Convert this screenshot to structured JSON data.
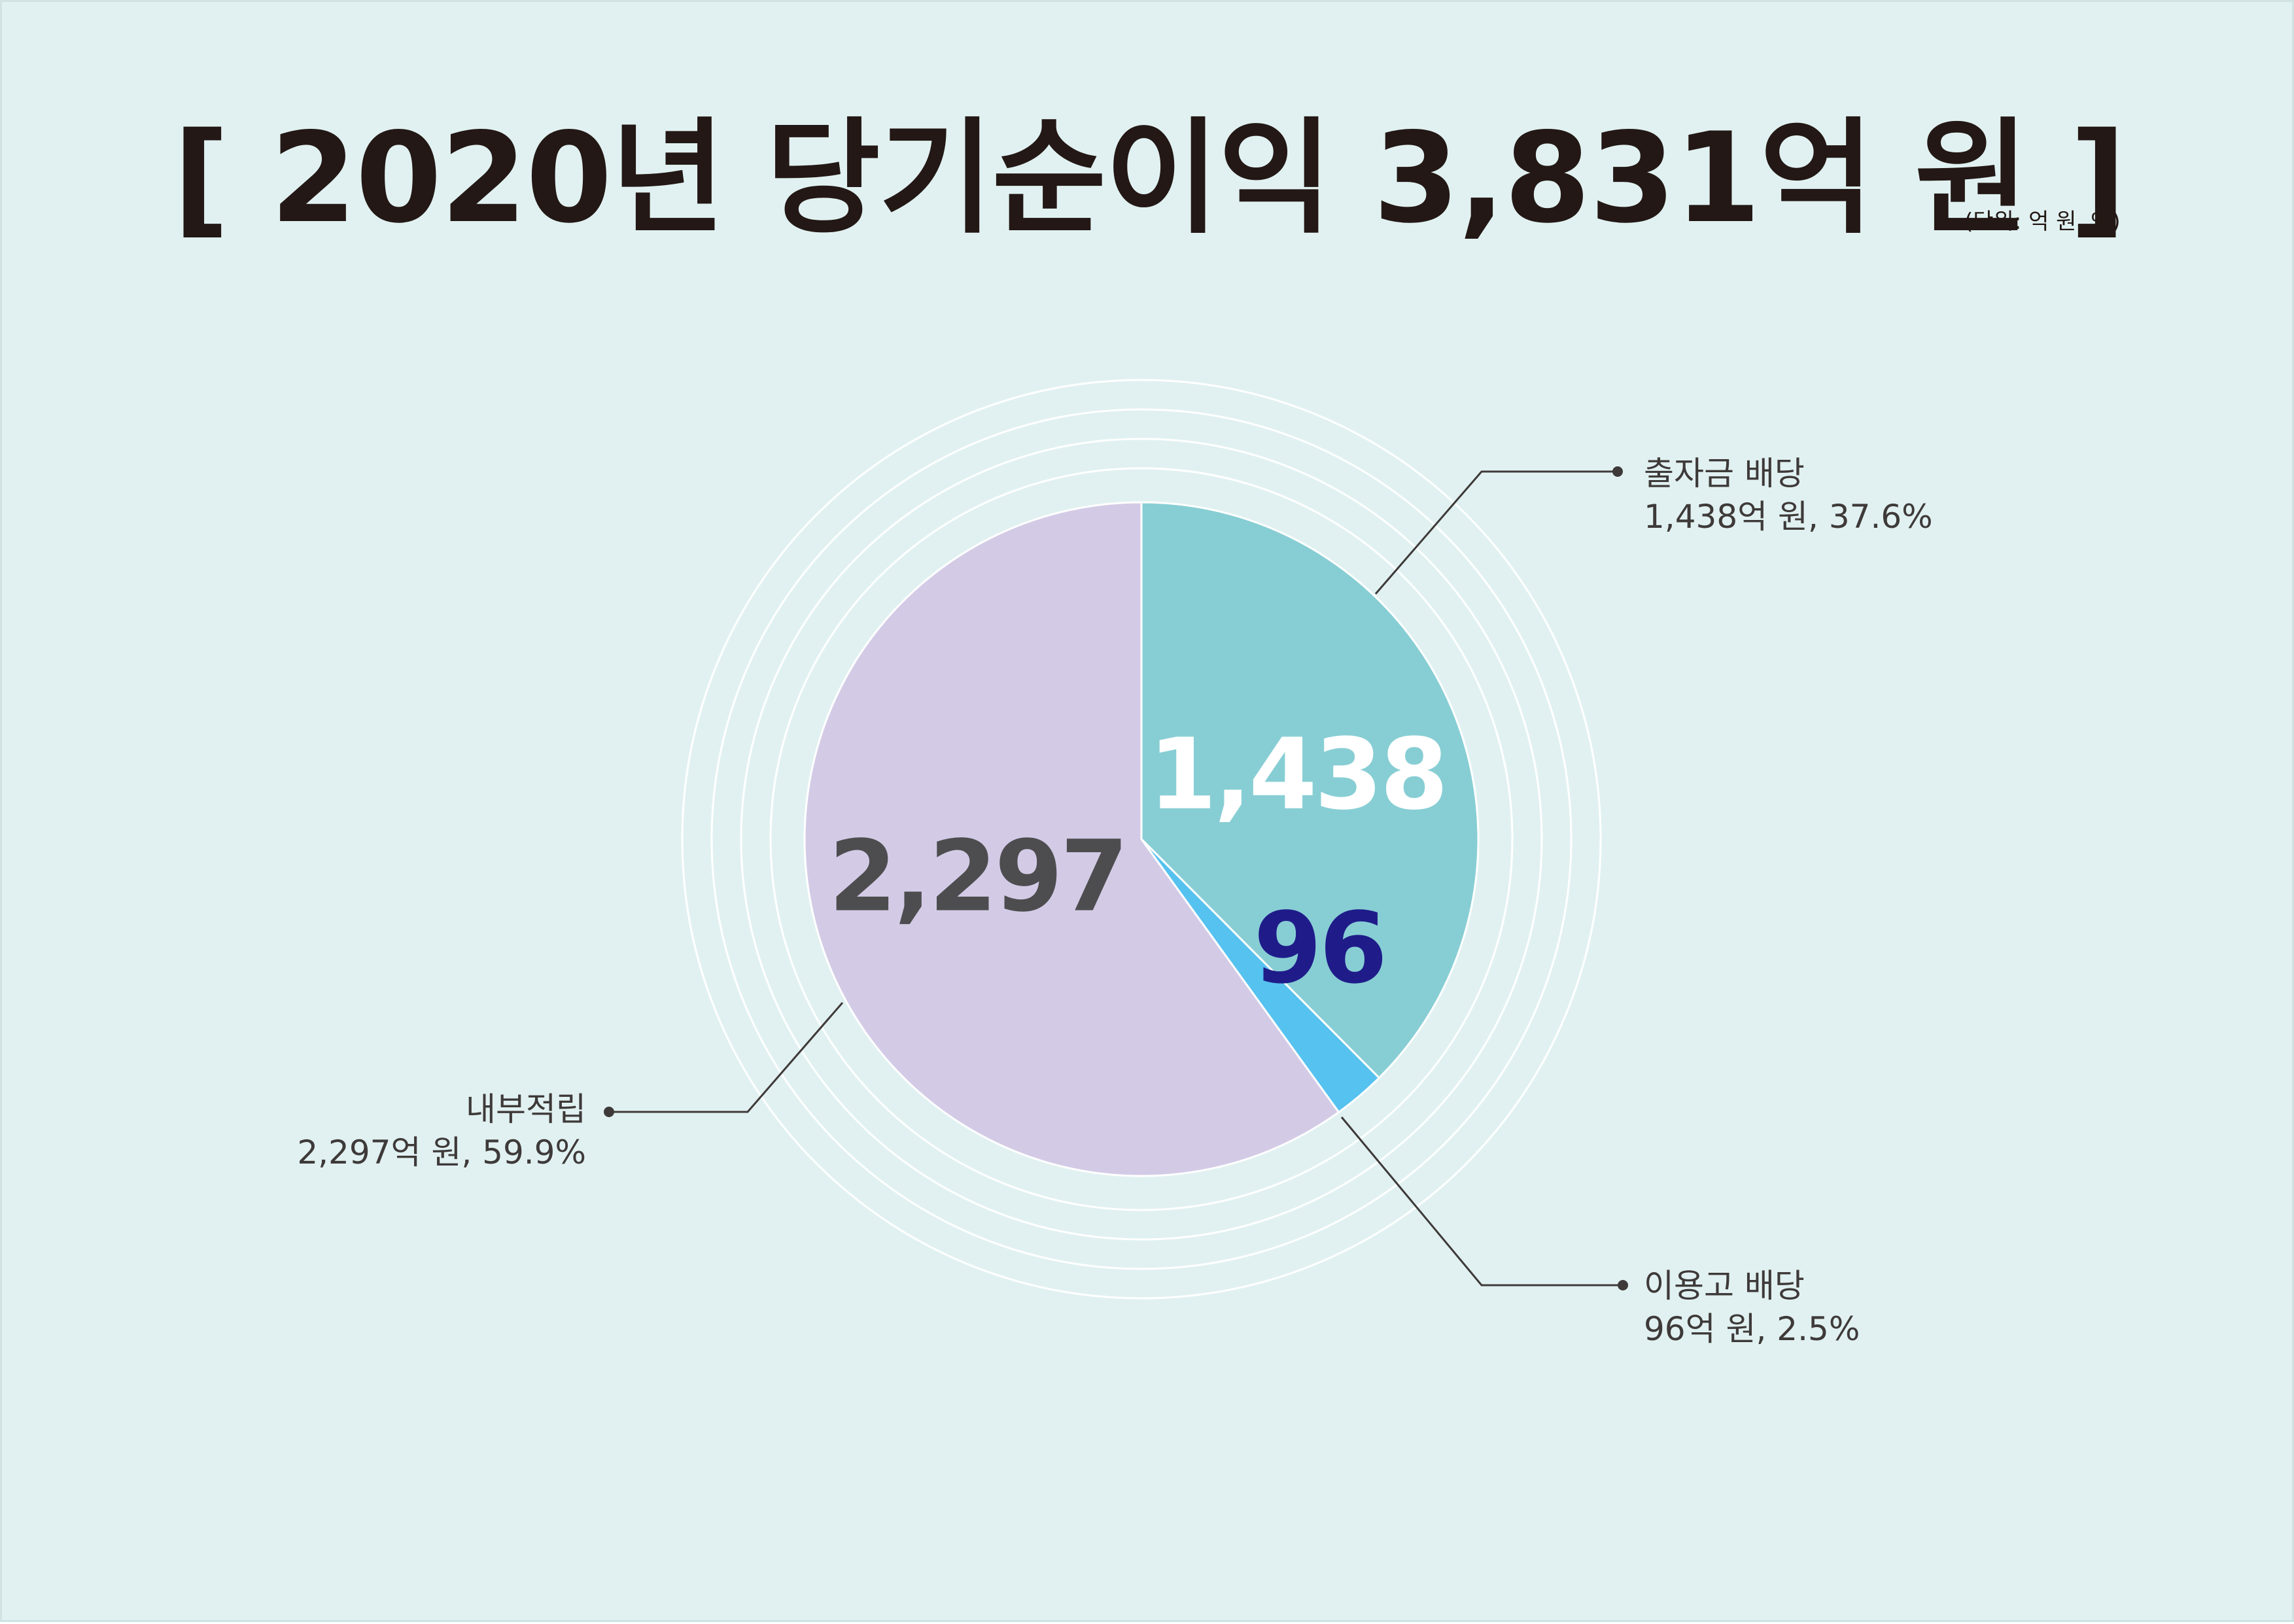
{
  "title": "[ 2020년 당기순이익 3,831억 원 ]",
  "unit_note": "(단위: 억 원, %)",
  "colors": {
    "background": "#e1f1f1",
    "title": "#231815",
    "leader": "#3e3a39",
    "ring": "#ffffff"
  },
  "chart_data": {
    "type": "pie",
    "title": "[ 2020년 당기순이익 3,831억 원 ]",
    "unit": "(단위: 억 원, %)",
    "total": 3831,
    "start_angle_deg": 0,
    "direction": "clockwise",
    "slices": [
      {
        "category": "출자금 배당",
        "value": 1438,
        "value_label": "1,438",
        "percent": 37.6,
        "callout_value": "1,438억 원, 37.6%",
        "color": "#87ced4",
        "label_color": "#ffffff"
      },
      {
        "category": "이용고 배당",
        "value": 96,
        "value_label": "96",
        "percent": 2.5,
        "callout_value": "96억 원, 2.5%",
        "color": "#56c2ef",
        "label_color": "#1f1c8a"
      },
      {
        "category": "내부적립",
        "value": 2297,
        "value_label": "2,297",
        "percent": 59.9,
        "callout_value": "2,297억 원, 59.9%",
        "color": "#d3cbe6",
        "label_color": "#4d4d4f"
      }
    ]
  }
}
